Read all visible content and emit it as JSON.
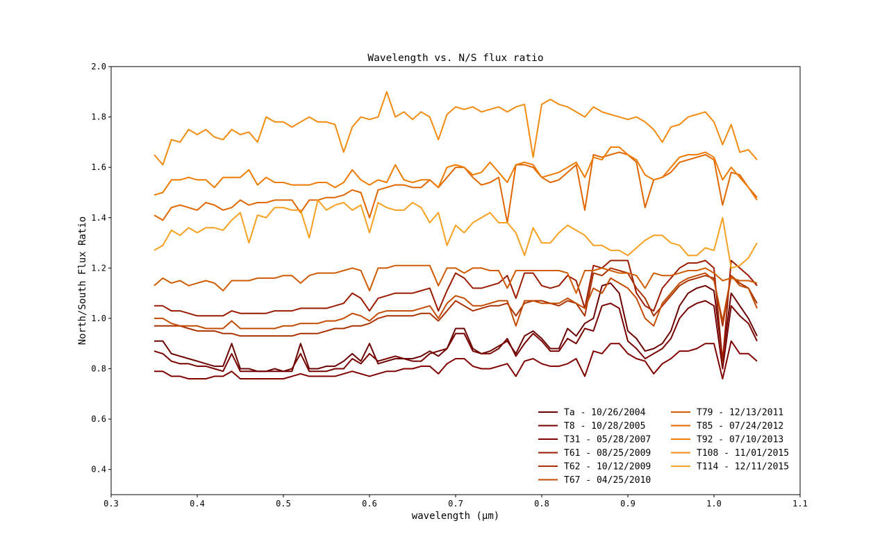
{
  "chart_data": {
    "type": "line",
    "title": "Wavelength vs. N/S flux ratio",
    "xlabel": "wavelength (μm)",
    "ylabel": "North/South Flux Ratio",
    "xlim": [
      0.3,
      1.1
    ],
    "ylim": [
      0.3,
      2.0
    ],
    "xticks": [
      "0.3",
      "0.4",
      "0.5",
      "0.6",
      "0.7",
      "0.8",
      "0.9",
      "1.0",
      "1.1"
    ],
    "yticks": [
      "0.4",
      "0.6",
      "0.8",
      "1.0",
      "1.2",
      "1.4",
      "1.6",
      "1.8",
      "2.0"
    ],
    "grid": false,
    "legend_position": "lower-right",
    "legend_columns": 2,
    "x": [
      0.35,
      0.36,
      0.37,
      0.38,
      0.39,
      0.4,
      0.41,
      0.42,
      0.43,
      0.44,
      0.45,
      0.46,
      0.47,
      0.48,
      0.49,
      0.5,
      0.51,
      0.52,
      0.53,
      0.54,
      0.55,
      0.56,
      0.57,
      0.58,
      0.59,
      0.6,
      0.61,
      0.62,
      0.63,
      0.64,
      0.65,
      0.66,
      0.67,
      0.68,
      0.69,
      0.7,
      0.71,
      0.72,
      0.73,
      0.74,
      0.75,
      0.76,
      0.77,
      0.78,
      0.79,
      0.8,
      0.81,
      0.82,
      0.83,
      0.84,
      0.85,
      0.86,
      0.87,
      0.88,
      0.89,
      0.9,
      0.91,
      0.92,
      0.93,
      0.94,
      0.95,
      0.96,
      0.97,
      0.98,
      0.99,
      1.0,
      1.01,
      1.02,
      1.03,
      1.04,
      1.05
    ],
    "series": [
      {
        "name": "Ta - 10/26/2004",
        "color": "#6b0000",
        "values": [
          0.91,
          0.91,
          0.86,
          0.85,
          0.84,
          0.83,
          0.82,
          0.81,
          0.81,
          0.9,
          0.8,
          0.8,
          0.79,
          0.79,
          0.8,
          0.79,
          0.79,
          0.9,
          0.8,
          0.8,
          0.81,
          0.81,
          0.83,
          0.86,
          0.83,
          0.9,
          0.82,
          0.83,
          0.84,
          0.84,
          0.84,
          0.85,
          0.87,
          0.85,
          0.88,
          0.96,
          0.96,
          0.88,
          0.86,
          0.87,
          0.89,
          0.91,
          0.86,
          0.93,
          0.95,
          0.92,
          0.88,
          0.88,
          0.96,
          0.93,
          0.98,
          1.0,
          1.13,
          1.14,
          1.1,
          0.95,
          0.92,
          0.87,
          0.88,
          0.9,
          0.95,
          1.05,
          1.1,
          1.12,
          1.13,
          1.11,
          0.84,
          1.1,
          1.05,
          1.0,
          0.93
        ]
      },
      {
        "name": "T8 - 10/28/2005",
        "color": "#760000",
        "values": [
          0.87,
          0.86,
          0.83,
          0.82,
          0.82,
          0.81,
          0.81,
          0.8,
          0.79,
          0.86,
          0.79,
          0.79,
          0.79,
          0.79,
          0.79,
          0.79,
          0.8,
          0.86,
          0.79,
          0.79,
          0.79,
          0.8,
          0.8,
          0.84,
          0.82,
          0.86,
          0.83,
          0.84,
          0.85,
          0.84,
          0.83,
          0.83,
          0.86,
          0.87,
          0.88,
          0.94,
          0.94,
          0.87,
          0.86,
          0.86,
          0.88,
          0.92,
          0.85,
          0.9,
          0.94,
          0.91,
          0.87,
          0.87,
          0.92,
          0.9,
          0.96,
          0.95,
          1.05,
          1.06,
          1.04,
          0.91,
          0.88,
          0.84,
          0.86,
          0.88,
          0.92,
          1.0,
          1.04,
          1.06,
          1.07,
          1.05,
          0.8,
          1.05,
          1.01,
          0.98,
          0.91
        ]
      },
      {
        "name": "T31 - 05/28/2007",
        "color": "#800000",
        "values": [
          0.79,
          0.79,
          0.77,
          0.77,
          0.76,
          0.76,
          0.76,
          0.77,
          0.77,
          0.79,
          0.76,
          0.76,
          0.76,
          0.76,
          0.76,
          0.76,
          0.77,
          0.78,
          0.77,
          0.77,
          0.77,
          0.77,
          0.78,
          0.79,
          0.78,
          0.77,
          0.78,
          0.79,
          0.79,
          0.8,
          0.8,
          0.81,
          0.81,
          0.78,
          0.82,
          0.84,
          0.84,
          0.81,
          0.8,
          0.8,
          0.81,
          0.82,
          0.77,
          0.83,
          0.84,
          0.82,
          0.81,
          0.81,
          0.82,
          0.84,
          0.77,
          0.87,
          0.86,
          0.9,
          0.9,
          0.86,
          0.84,
          0.83,
          0.78,
          0.82,
          0.84,
          0.87,
          0.87,
          0.88,
          0.9,
          0.9,
          0.76,
          0.91,
          0.86,
          0.86,
          0.83
        ]
      },
      {
        "name": "T61 - 08/25/2009",
        "color": "#9a1a00",
        "values": [
          1.05,
          1.05,
          1.03,
          1.03,
          1.02,
          1.01,
          1.01,
          1.01,
          1.01,
          1.03,
          1.02,
          1.02,
          1.02,
          1.02,
          1.03,
          1.03,
          1.03,
          1.04,
          1.04,
          1.04,
          1.04,
          1.05,
          1.06,
          1.1,
          1.08,
          1.03,
          1.08,
          1.09,
          1.1,
          1.1,
          1.1,
          1.11,
          1.12,
          1.03,
          1.11,
          1.18,
          1.16,
          1.12,
          1.12,
          1.13,
          1.14,
          1.17,
          1.08,
          1.18,
          1.18,
          1.13,
          1.12,
          1.13,
          1.17,
          1.15,
          1.04,
          1.21,
          1.2,
          1.23,
          1.23,
          1.23,
          1.1,
          1.05,
          1.03,
          1.12,
          1.16,
          1.2,
          1.22,
          1.22,
          1.23,
          1.2,
          0.83,
          1.23,
          1.2,
          1.17,
          1.13
        ]
      },
      {
        "name": "T62 - 10/12/2009",
        "color": "#aa3000",
        "values": [
          0.97,
          0.97,
          0.97,
          0.97,
          0.96,
          0.95,
          0.95,
          0.95,
          0.94,
          0.94,
          0.93,
          0.93,
          0.93,
          0.93,
          0.93,
          0.93,
          0.93,
          0.94,
          0.94,
          0.94,
          0.95,
          0.96,
          0.96,
          0.97,
          0.97,
          0.98,
          1.0,
          1.01,
          1.01,
          1.01,
          1.01,
          1.02,
          1.02,
          0.99,
          1.03,
          1.07,
          1.05,
          1.03,
          1.04,
          1.05,
          1.05,
          1.06,
          1.01,
          1.06,
          1.07,
          1.07,
          1.06,
          1.05,
          1.07,
          1.06,
          1.01,
          1.18,
          1.17,
          1.2,
          1.19,
          1.18,
          1.12,
          1.08,
          1.01,
          1.05,
          1.09,
          1.13,
          1.15,
          1.16,
          1.17,
          1.16,
          0.97,
          1.17,
          1.14,
          1.12,
          1.06
        ]
      },
      {
        "name": "T67 - 04/25/2010",
        "color": "#c24a00",
        "values": [
          1.0,
          1.0,
          0.98,
          0.97,
          0.97,
          0.97,
          0.96,
          0.96,
          0.96,
          0.99,
          0.96,
          0.96,
          0.96,
          0.96,
          0.96,
          0.97,
          0.97,
          0.98,
          0.98,
          0.98,
          0.99,
          0.99,
          1.0,
          1.02,
          1.01,
          0.99,
          1.02,
          1.03,
          1.03,
          1.03,
          1.03,
          1.04,
          1.05,
          1.0,
          1.06,
          1.09,
          1.08,
          1.05,
          1.05,
          1.06,
          1.07,
          1.07,
          0.97,
          1.07,
          1.07,
          1.06,
          1.06,
          1.06,
          1.08,
          1.06,
          1.04,
          1.12,
          1.1,
          1.16,
          1.14,
          1.12,
          1.08,
          1.0,
          0.97,
          1.06,
          1.1,
          1.14,
          1.16,
          1.17,
          1.18,
          1.15,
          0.99,
          1.17,
          1.13,
          1.12,
          1.04
        ]
      },
      {
        "name": "T79 - 12/13/2011",
        "color": "#cf5a00",
        "values": [
          1.13,
          1.16,
          1.14,
          1.15,
          1.13,
          1.14,
          1.15,
          1.14,
          1.11,
          1.15,
          1.15,
          1.15,
          1.16,
          1.16,
          1.16,
          1.17,
          1.17,
          1.14,
          1.17,
          1.18,
          1.18,
          1.18,
          1.19,
          1.2,
          1.19,
          1.11,
          1.2,
          1.2,
          1.21,
          1.21,
          1.21,
          1.21,
          1.21,
          1.13,
          1.2,
          1.2,
          1.18,
          1.2,
          1.2,
          1.19,
          1.19,
          1.12,
          1.19,
          1.19,
          1.19,
          1.19,
          1.19,
          1.19,
          1.18,
          1.1,
          1.19,
          1.19,
          1.2,
          1.19,
          1.18,
          1.18,
          1.17,
          1.12,
          1.18,
          1.17,
          1.17,
          1.18,
          1.19,
          1.19,
          1.2,
          1.18,
          1.15,
          1.16,
          1.15,
          1.15,
          1.14
        ]
      },
      {
        "name": "T85 - 07/24/2012",
        "color": "#e06600",
        "values": [
          1.41,
          1.39,
          1.44,
          1.45,
          1.44,
          1.43,
          1.46,
          1.45,
          1.43,
          1.44,
          1.47,
          1.45,
          1.46,
          1.46,
          1.47,
          1.47,
          1.47,
          1.42,
          1.47,
          1.47,
          1.48,
          1.48,
          1.49,
          1.51,
          1.5,
          1.4,
          1.51,
          1.52,
          1.53,
          1.53,
          1.52,
          1.52,
          1.55,
          1.52,
          1.56,
          1.6,
          1.6,
          1.56,
          1.53,
          1.54,
          1.56,
          1.38,
          1.61,
          1.61,
          1.6,
          1.56,
          1.54,
          1.55,
          1.58,
          1.61,
          1.43,
          1.65,
          1.64,
          1.65,
          1.66,
          1.65,
          1.62,
          1.44,
          1.55,
          1.56,
          1.58,
          1.62,
          1.63,
          1.64,
          1.65,
          1.63,
          1.45,
          1.58,
          1.57,
          1.52,
          1.48
        ]
      },
      {
        "name": "T92 - 07/10/2013",
        "color": "#ee7a00",
        "values": [
          1.49,
          1.5,
          1.55,
          1.55,
          1.56,
          1.55,
          1.55,
          1.52,
          1.56,
          1.56,
          1.56,
          1.59,
          1.53,
          1.56,
          1.54,
          1.54,
          1.53,
          1.53,
          1.53,
          1.54,
          1.54,
          1.52,
          1.54,
          1.59,
          1.55,
          1.53,
          1.55,
          1.54,
          1.61,
          1.55,
          1.54,
          1.55,
          1.55,
          1.52,
          1.6,
          1.61,
          1.6,
          1.57,
          1.58,
          1.62,
          1.58,
          1.54,
          1.61,
          1.62,
          1.61,
          1.56,
          1.57,
          1.58,
          1.6,
          1.62,
          1.56,
          1.64,
          1.63,
          1.68,
          1.68,
          1.65,
          1.63,
          1.57,
          1.55,
          1.56,
          1.6,
          1.64,
          1.65,
          1.65,
          1.66,
          1.64,
          1.55,
          1.6,
          1.56,
          1.52,
          1.47
        ]
      },
      {
        "name": "T108 - 11/01/2015",
        "color": "#f28a10",
        "values": [
          1.65,
          1.61,
          1.71,
          1.7,
          1.75,
          1.73,
          1.75,
          1.72,
          1.71,
          1.75,
          1.73,
          1.74,
          1.7,
          1.8,
          1.78,
          1.78,
          1.76,
          1.78,
          1.8,
          1.78,
          1.78,
          1.77,
          1.66,
          1.76,
          1.8,
          1.79,
          1.8,
          1.9,
          1.8,
          1.82,
          1.79,
          1.82,
          1.8,
          1.71,
          1.81,
          1.84,
          1.83,
          1.84,
          1.82,
          1.83,
          1.84,
          1.82,
          1.84,
          1.85,
          1.64,
          1.85,
          1.87,
          1.85,
          1.84,
          1.82,
          1.8,
          1.84,
          1.82,
          1.81,
          1.8,
          1.79,
          1.8,
          1.78,
          1.75,
          1.7,
          1.76,
          1.77,
          1.8,
          1.81,
          1.82,
          1.78,
          1.69,
          1.77,
          1.66,
          1.67,
          1.63
        ]
      },
      {
        "name": "T114 - 12/11/2015",
        "color": "#f7a020",
        "values": [
          1.27,
          1.29,
          1.35,
          1.33,
          1.36,
          1.34,
          1.36,
          1.36,
          1.35,
          1.39,
          1.42,
          1.3,
          1.41,
          1.4,
          1.44,
          1.44,
          1.43,
          1.43,
          1.32,
          1.47,
          1.43,
          1.45,
          1.46,
          1.43,
          1.45,
          1.34,
          1.46,
          1.44,
          1.43,
          1.43,
          1.46,
          1.44,
          1.38,
          1.42,
          1.29,
          1.37,
          1.34,
          1.38,
          1.4,
          1.42,
          1.38,
          1.38,
          1.34,
          1.25,
          1.36,
          1.3,
          1.3,
          1.34,
          1.37,
          1.35,
          1.33,
          1.29,
          1.29,
          1.27,
          1.27,
          1.25,
          1.28,
          1.31,
          1.33,
          1.33,
          1.3,
          1.29,
          1.25,
          1.25,
          1.28,
          1.27,
          1.4,
          1.2,
          1.21,
          1.24,
          1.3
        ]
      }
    ]
  }
}
